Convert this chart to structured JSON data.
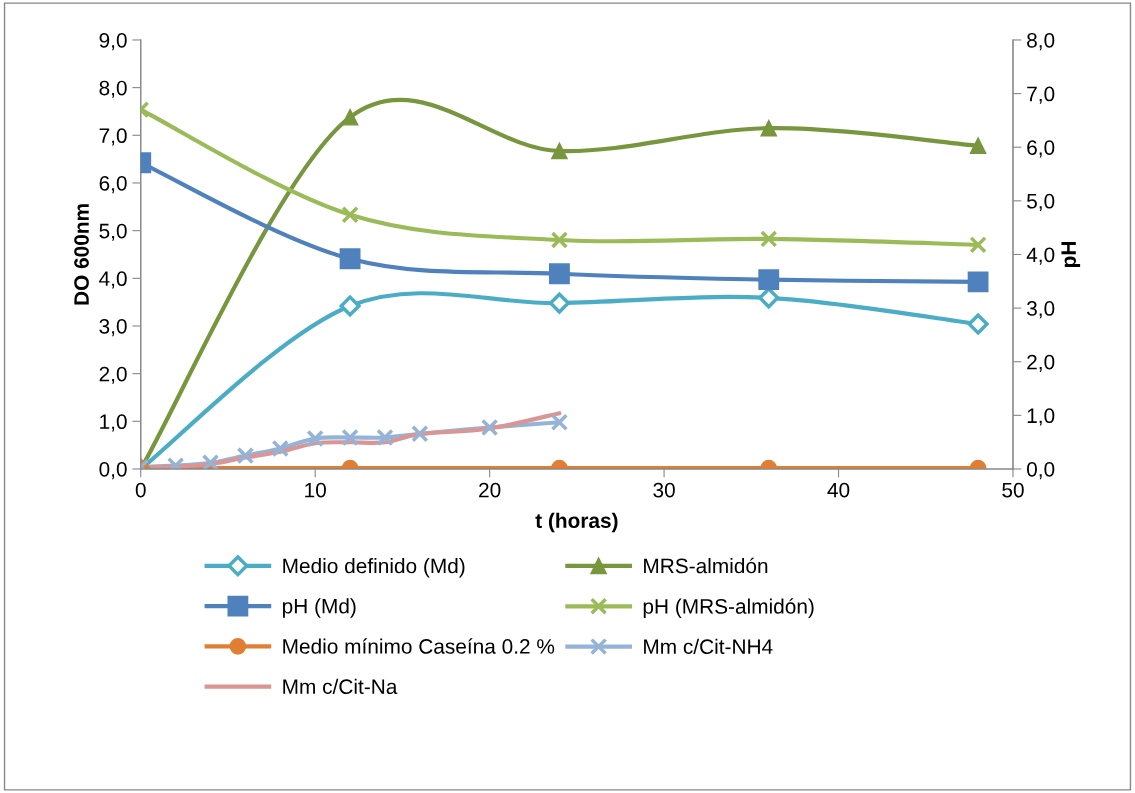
{
  "chart_data": {
    "type": "line",
    "xlabel": "t (horas)",
    "ylabel": "DO 600nm",
    "y2label": "pH",
    "xlim": [
      0,
      50
    ],
    "xticks": [
      0,
      10,
      20,
      30,
      40,
      50
    ],
    "ylim": [
      0,
      9
    ],
    "yticks": [
      {
        "value": 0,
        "label": "0,0"
      },
      {
        "value": 1,
        "label": "1,0"
      },
      {
        "value": 2,
        "label": "2,0"
      },
      {
        "value": 3,
        "label": "3,0"
      },
      {
        "value": 4,
        "label": "4,0"
      },
      {
        "value": 5,
        "label": "5,0"
      },
      {
        "value": 6,
        "label": "6,0"
      },
      {
        "value": 7,
        "label": "7,0"
      },
      {
        "value": 8,
        "label": "8,0"
      },
      {
        "value": 9,
        "label": "9,0"
      }
    ],
    "y2lim": [
      0,
      8
    ],
    "y2ticks": [
      {
        "value": 0,
        "label": "0,0"
      },
      {
        "value": 1,
        "label": "1,0"
      },
      {
        "value": 2,
        "label": "2,0"
      },
      {
        "value": 3,
        "label": "3,0"
      },
      {
        "value": 4,
        "label": "4,0"
      },
      {
        "value": 5,
        "label": "5,0"
      },
      {
        "value": 6,
        "label": "6,0"
      },
      {
        "value": 7,
        "label": "7,0"
      },
      {
        "value": 8,
        "label": "8,0"
      }
    ],
    "grid": false,
    "legend": "bottom",
    "series": [
      {
        "name": "Medio definido (Md)",
        "color": "#4bacc6",
        "marker": "diamond",
        "x": [
          0,
          12,
          24,
          36,
          48
        ],
        "values": [
          0.0,
          3.42,
          3.48,
          3.59,
          3.04
        ]
      },
      {
        "name": "MRS-almidón",
        "color": "#77963d",
        "marker": "triangle",
        "x": [
          0,
          12,
          24,
          36,
          48
        ],
        "values": [
          0.0,
          7.38,
          6.67,
          7.15,
          6.78
        ]
      },
      {
        "name": "pH (Md)",
        "color": "#4f81bd",
        "marker": "square",
        "axis": "y2",
        "x": [
          0,
          12,
          24,
          36,
          48
        ],
        "values": [
          5.71,
          3.92,
          3.64,
          3.53,
          3.49
        ]
      },
      {
        "name": "pH (MRS-almidón)",
        "color": "#9bbb59",
        "marker": "cross",
        "axis": "y2",
        "x": [
          0,
          12,
          24,
          36,
          48
        ],
        "values": [
          6.7,
          4.74,
          4.27,
          4.29,
          4.18
        ]
      },
      {
        "name": "Medio mínimo Caseína 0.2 %",
        "color": "#e07f34",
        "marker": "circle",
        "x": [
          0,
          12,
          24,
          36,
          48
        ],
        "values": [
          0.02,
          0.02,
          0.02,
          0.02,
          0.02
        ]
      },
      {
        "name": "Mm c/Cit-NH4",
        "color": "#95b3d7",
        "marker": "cross",
        "x": [
          0,
          2,
          4,
          6,
          8,
          10,
          12,
          14,
          16,
          20,
          24
        ],
        "values": [
          0.04,
          0.07,
          0.13,
          0.28,
          0.43,
          0.64,
          0.66,
          0.66,
          0.74,
          0.87,
          0.98
        ]
      },
      {
        "name": "Mm c/Cit-Na",
        "color": "#d99694",
        "marker": "none",
        "x": [
          0,
          2,
          4,
          6,
          8,
          10,
          12,
          14,
          16,
          20,
          24
        ],
        "values": [
          0.04,
          0.05,
          0.1,
          0.24,
          0.36,
          0.54,
          0.56,
          0.56,
          0.73,
          0.85,
          1.17
        ]
      }
    ]
  }
}
